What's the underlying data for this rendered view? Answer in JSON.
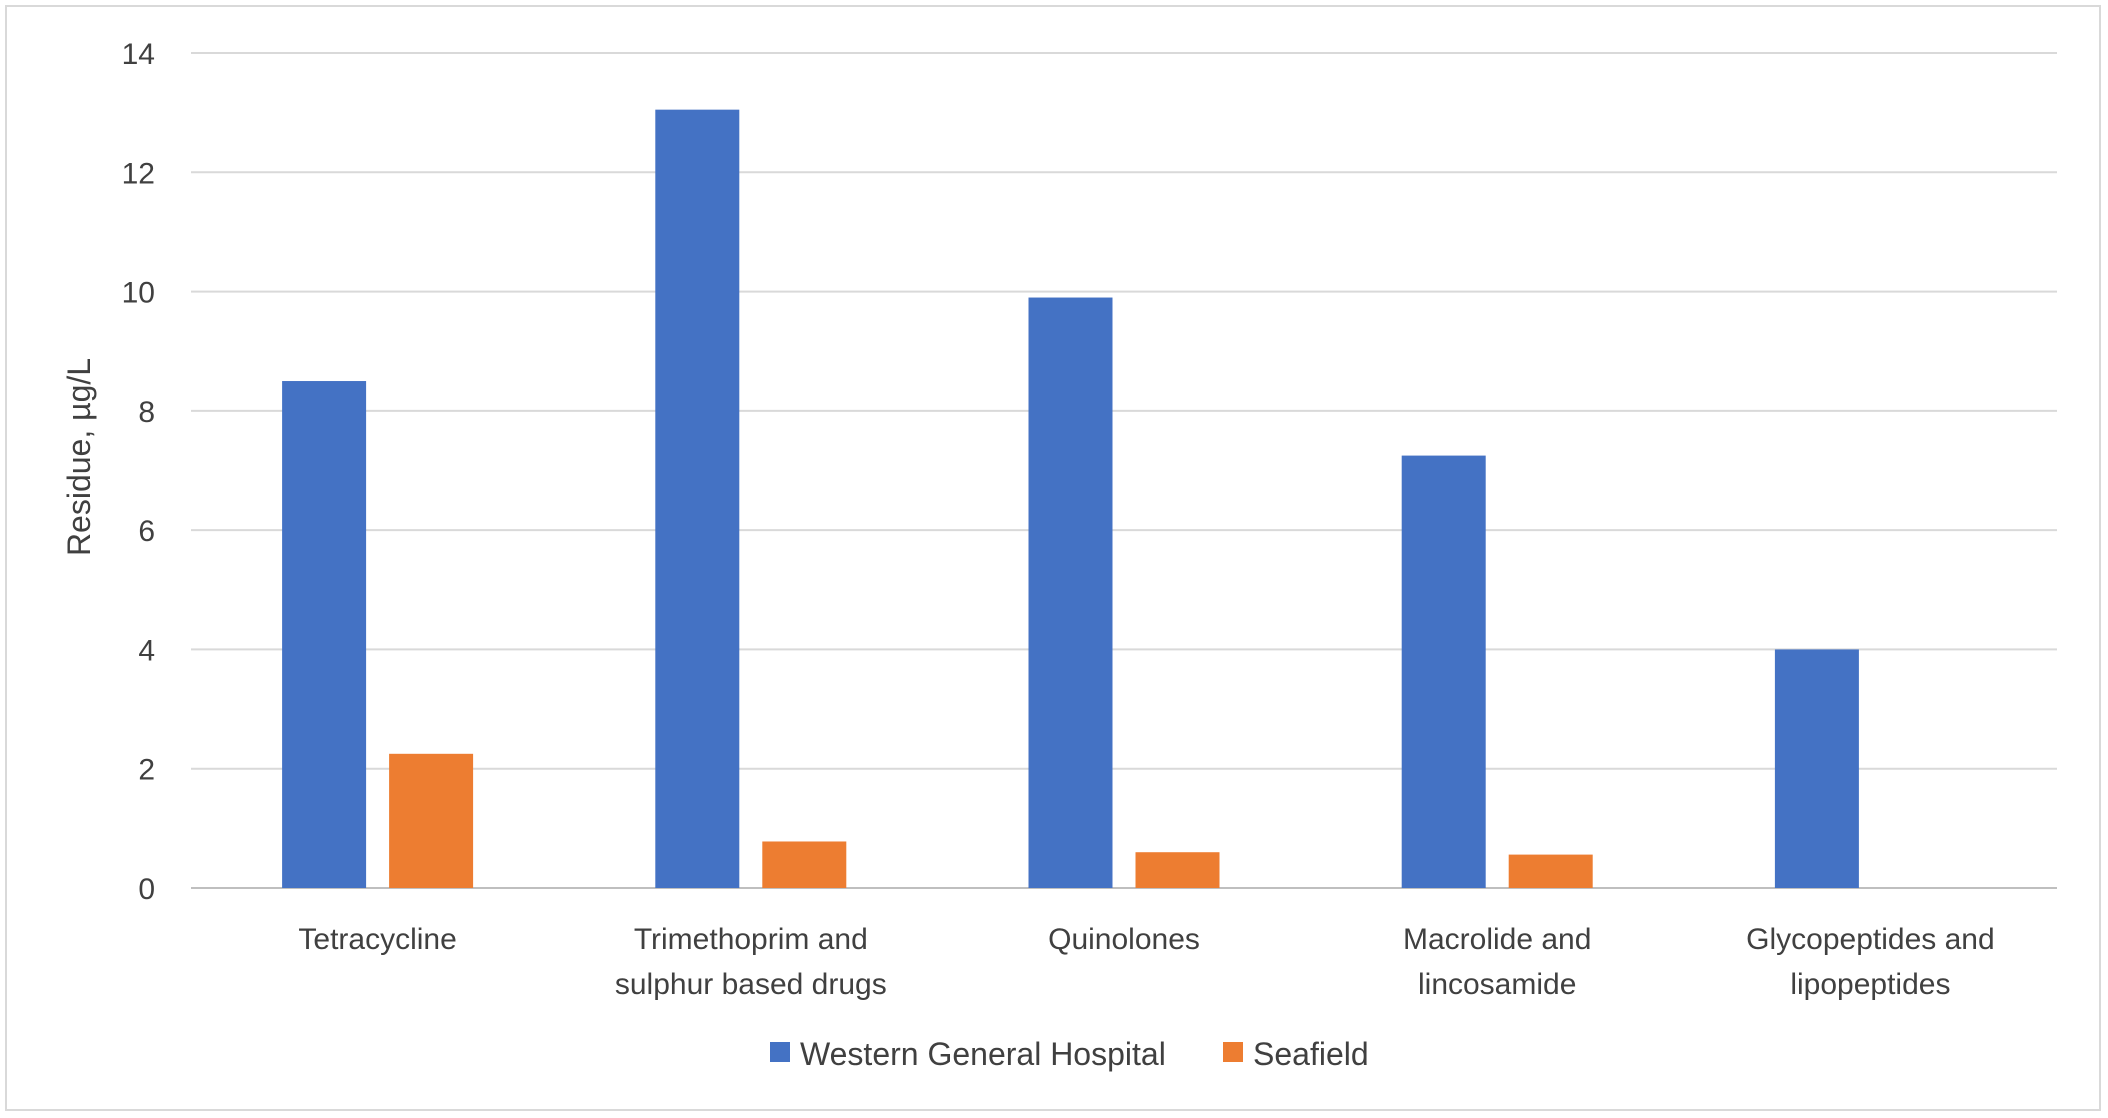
{
  "chart_data": {
    "type": "bar",
    "title": "",
    "xlabel": "",
    "ylabel": "Residue, µg/L",
    "ylim": [
      0,
      14
    ],
    "yticks": [
      0,
      2,
      4,
      6,
      8,
      10,
      12,
      14
    ],
    "grid": true,
    "legend_position": "bottom",
    "categories": [
      [
        "Tetracycline"
      ],
      [
        "Trimethoprim and",
        "sulphur based drugs"
      ],
      [
        "Quinolones"
      ],
      [
        "Macrolide and",
        "lincosamide"
      ],
      [
        "Glycopeptides and",
        "lipopeptides"
      ]
    ],
    "series": [
      {
        "name": "Western General Hospital",
        "color": "#4472c4",
        "values": [
          8.5,
          13.05,
          9.9,
          7.25,
          4.0
        ]
      },
      {
        "name": "Seafield",
        "color": "#ed7d31",
        "values": [
          2.25,
          0.78,
          0.6,
          0.56,
          0
        ]
      }
    ]
  }
}
